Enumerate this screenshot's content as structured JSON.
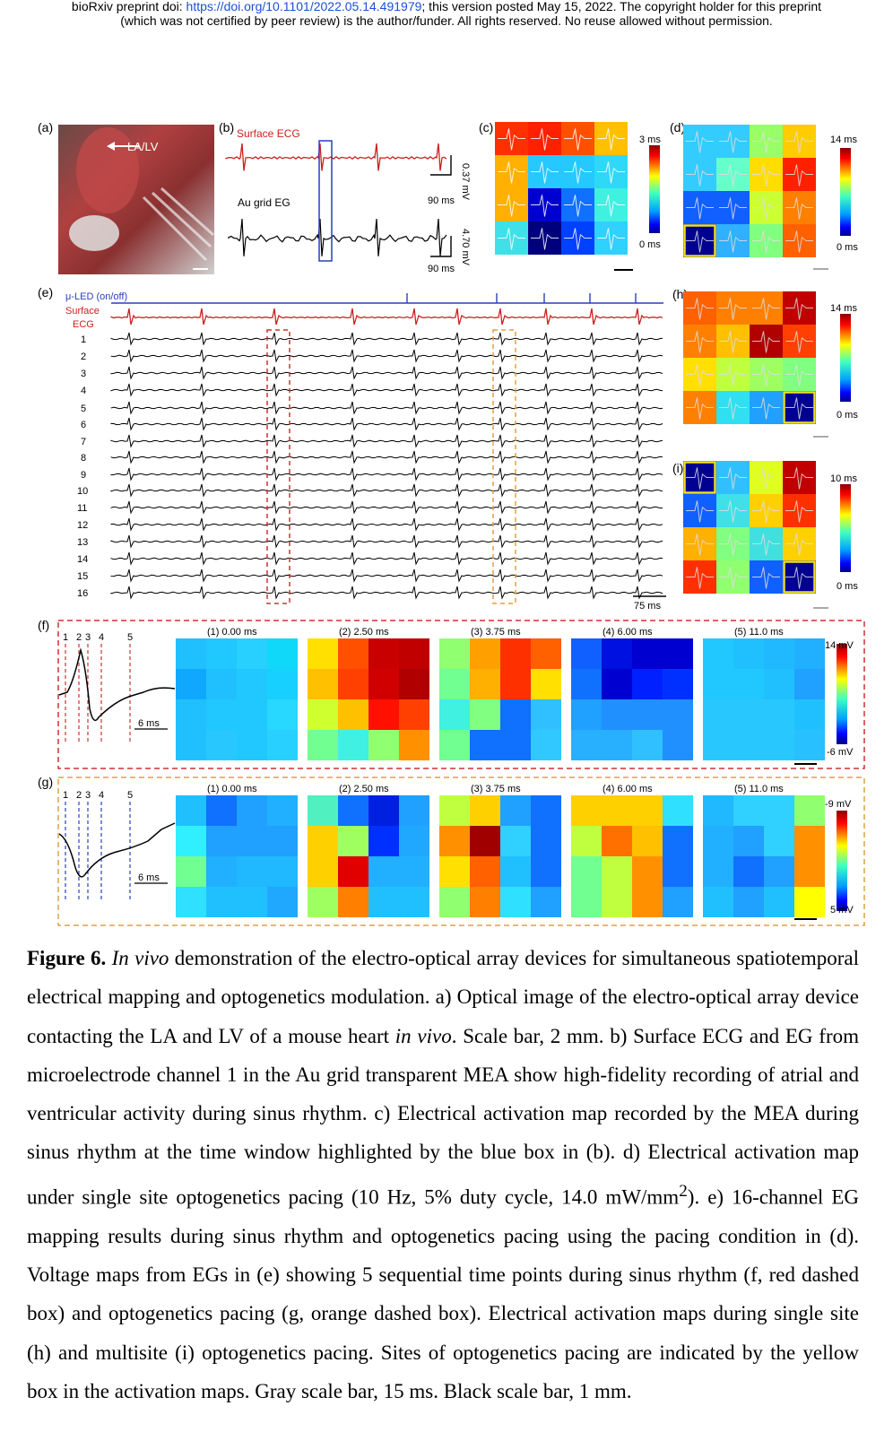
{
  "header": {
    "line1_pre": "bioRxiv preprint doi: ",
    "line1_link": "https://doi.org/10.1101/2022.05.14.491979",
    "line1_post": "; this version posted May 15, 2022. The copyright holder for this preprint",
    "line2": "(which was not certified by peer review) is the author/funder. All rights reserved. No reuse allowed without permission."
  },
  "panels": {
    "a": {
      "label": "(a)",
      "annotation": "LA/LV"
    },
    "b": {
      "label": "(b)",
      "ecg_label": "Surface ECG",
      "eg_label": "Au grid EG",
      "scale_time_1": "90 ms",
      "scale_v_1": "0.37 mV",
      "scale_time_2": "90 ms",
      "scale_v_2": "4.70 mV"
    },
    "c": {
      "label": "(c)",
      "cbar_max": "3 ms",
      "cbar_min": "0 ms",
      "grid": [
        [
          "#ff3000",
          "#ff2000",
          "#ff5000",
          "#ffc000"
        ],
        [
          "#ffb000",
          "#25c8ff",
          "#25c8ff",
          "#30d8f8"
        ],
        [
          "#ffb000",
          "#0000d0",
          "#1070ff",
          "#40f0e0"
        ],
        [
          "#40e0e8",
          "#00007d",
          "#0040ff",
          "#30d0ff"
        ]
      ]
    },
    "d": {
      "label": "(d)",
      "cbar_max": "14 ms",
      "cbar_min": "0 ms",
      "grid": [
        [
          "#33ccff",
          "#33ccff",
          "#99ff66",
          "#ffcc00"
        ],
        [
          "#33ccff",
          "#66ffcc",
          "#ffdd00",
          "#ff2000"
        ],
        [
          "#1060ff",
          "#1060ff",
          "#ccff33",
          "#ff8000"
        ],
        [
          "#000090",
          "#30b0ff",
          "#80ff80",
          "#ff6000"
        ]
      ]
    },
    "e": {
      "label": "(e)",
      "led_label": "μ-LED (on/off)",
      "ecg_label_1": "Surface",
      "ecg_label_2": "ECG",
      "channels": [
        "1",
        "2",
        "3",
        "4",
        "5",
        "6",
        "7",
        "8",
        "9",
        "10",
        "11",
        "12",
        "13",
        "14",
        "15",
        "16"
      ],
      "scale": "75 ms"
    },
    "f": {
      "label": "(f)",
      "markers": [
        "1",
        "2",
        "3",
        "4",
        "5"
      ],
      "scale": "6 ms",
      "maps": [
        {
          "title": "(1) 0.00 ms",
          "grid": [
            [
              "#20c0ff",
              "#20c8ff",
              "#28d0ff",
              "#10d8f8"
            ],
            [
              "#10a8ff",
              "#20c0ff",
              "#20c8ff",
              "#18d0ff"
            ],
            [
              "#20c0ff",
              "#20c8ff",
              "#20c8ff",
              "#28d8ff"
            ],
            [
              "#20c0ff",
              "#28c8ff",
              "#20c8ff",
              "#28d0ff"
            ]
          ]
        },
        {
          "title": "(2) 2.50 ms",
          "grid": [
            [
              "#ffe000",
              "#ff5000",
              "#c80000",
              "#c00000"
            ],
            [
              "#ffc000",
              "#ff4000",
              "#d00000",
              "#b00000"
            ],
            [
              "#d0ff30",
              "#ffc000",
              "#ff1000",
              "#ff4000"
            ],
            [
              "#70ff90",
              "#40f0e0",
              "#90ff70",
              "#ff9000"
            ]
          ]
        },
        {
          "title": "(3) 3.75 ms",
          "grid": [
            [
              "#90ff70",
              "#ffa000",
              "#ff3000",
              "#ff6000"
            ],
            [
              "#70ff90",
              "#ffb000",
              "#ff3000",
              "#ffe000"
            ],
            [
              "#40f0e0",
              "#80ff80",
              "#1070ff",
              "#30c0ff"
            ],
            [
              "#70ff90",
              "#1070ff",
              "#1070ff",
              "#30c8ff"
            ]
          ]
        },
        {
          "title": "(4) 6.00 ms",
          "grid": [
            [
              "#1060ff",
              "#0010e0",
              "#0000d0",
              "#0000d0"
            ],
            [
              "#1070ff",
              "#0000d0",
              "#0020ff",
              "#0030ff"
            ],
            [
              "#20a0ff",
              "#2090ff",
              "#2090ff",
              "#2090ff"
            ],
            [
              "#28b0ff",
              "#28b0ff",
              "#30c0ff",
              "#2090ff"
            ]
          ]
        },
        {
          "title": "(5) 11.0 ms",
          "grid": [
            [
              "#20c8ff",
              "#20c0ff",
              "#20b8ff",
              "#20b0ff"
            ],
            [
              "#20c8ff",
              "#20c8ff",
              "#20c0ff",
              "#20a0ff"
            ],
            [
              "#28c8ff",
              "#28c8ff",
              "#28c8ff",
              "#20c0ff"
            ],
            [
              "#28c8ff",
              "#28c8ff",
              "#28c8ff",
              "#28c0ff"
            ]
          ]
        }
      ],
      "cbar_max": "14 mV",
      "cbar_min": "-6 mV"
    },
    "g": {
      "label": "(g)",
      "markers": [
        "1",
        "2",
        "3",
        "4",
        "5"
      ],
      "scale": "6 ms",
      "maps": [
        {
          "title": "(1) 0.00 ms",
          "grid": [
            [
              "#20c0ff",
              "#1070ff",
              "#20a0ff",
              "#20b0ff"
            ],
            [
              "#30f0ff",
              "#20a0ff",
              "#20a0ff",
              "#20a0ff"
            ],
            [
              "#70ff90",
              "#20b0ff",
              "#20b8ff",
              "#20b8ff"
            ],
            [
              "#30e0ff",
              "#20c0ff",
              "#20c0ff",
              "#20a8ff"
            ]
          ]
        },
        {
          "title": "(2) 2.50 ms",
          "grid": [
            [
              "#50f0c0",
              "#1070ff",
              "#0020e0",
              "#20a0ff"
            ],
            [
              "#ffd000",
              "#a0ff60",
              "#0030ff",
              "#20a8ff"
            ],
            [
              "#ffd000",
              "#e00000",
              "#20b0ff",
              "#20b0ff"
            ],
            [
              "#a0ff60",
              "#ff8000",
              "#20c0ff",
              "#20c0ff"
            ]
          ]
        },
        {
          "title": "(3) 3.75 ms",
          "grid": [
            [
              "#c0ff40",
              "#ffd000",
              "#20a0ff",
              "#1070ff"
            ],
            [
              "#ff9000",
              "#a00000",
              "#30d0ff",
              "#1070ff"
            ],
            [
              "#ffe000",
              "#ff6000",
              "#20c0ff",
              "#1070ff"
            ],
            [
              "#90ff70",
              "#ff8000",
              "#30e0ff",
              "#20a0ff"
            ]
          ]
        },
        {
          "title": "(4) 6.00 ms",
          "grid": [
            [
              "#ffd000",
              "#ffd000",
              "#ffd000",
              "#30e0ff"
            ],
            [
              "#c0ff40",
              "#ff7000",
              "#ffc000",
              "#1070ff"
            ],
            [
              "#70ff90",
              "#c0ff40",
              "#ff9000",
              "#1070ff"
            ],
            [
              "#70ff90",
              "#c0ff40",
              "#ff9000",
              "#20a0ff"
            ]
          ]
        },
        {
          "title": "(5) 11.0 ms",
          "grid": [
            [
              "#20b8ff",
              "#30d0ff",
              "#30d0ff",
              "#90ff70"
            ],
            [
              "#20b0ff",
              "#20a0ff",
              "#30d0ff",
              "#ff9000"
            ],
            [
              "#20b0ff",
              "#1070ff",
              "#20a0ff",
              "#ff9000"
            ],
            [
              "#20c0ff",
              "#20a0ff",
              "#20c0ff",
              "#ffff00"
            ]
          ]
        }
      ],
      "cbar_max": "-9 mV",
      "cbar_min": "5 mV"
    },
    "h": {
      "label": "(h)",
      "cbar_max": "14 ms",
      "cbar_min": "0 ms",
      "grid": [
        [
          "#ff6000",
          "#ff8000",
          "#ff8000",
          "#c00000"
        ],
        [
          "#ff8000",
          "#ffc000",
          "#b00000",
          "#ff4000"
        ],
        [
          "#ffe000",
          "#c0ff40",
          "#a0ff60",
          "#80ff80"
        ],
        [
          "#ff8000",
          "#30e0f0",
          "#20a0ff",
          "#000090"
        ]
      ]
    },
    "i": {
      "label": "(i)",
      "cbar_max": "10 ms",
      "cbar_min": "0 ms",
      "grid": [
        [
          "#000090",
          "#30c0ff",
          "#e0ff20",
          "#c00000"
        ],
        [
          "#1060ff",
          "#40e0e8",
          "#ffd000",
          "#ff3000"
        ],
        [
          "#ffb000",
          "#80ff80",
          "#40e0e0",
          "#ffd000"
        ],
        [
          "#ff3000",
          "#90ff70",
          "#1060ff",
          "#000090"
        ]
      ]
    }
  },
  "caption": {
    "fig_label": "Figure 6.",
    "italic_1": "In vivo",
    "text_1": " demonstration of the electro-optical array devices for simultaneous spatiotemporal electrical mapping and optogenetics modulation. a) Optical image of the electro-optical array device contacting the LA and LV of a mouse heart ",
    "italic_2": "in vivo",
    "text_2": ". Scale bar, 2 mm. b) Surface ECG and EG from microelectrode channel 1 in the Au grid transparent MEA show high-fidelity recording of atrial and ventricular activity during sinus rhythm. c) Electrical activation map recorded by the MEA during sinus rhythm at the time window highlighted by the blue box in (b). d) Electrical activation map under single site optogenetics pacing (10 Hz, 5% duty cycle, 14.0 mW/mm",
    "sup": "2",
    "text_3": "). e) 16-channel EG mapping results during sinus rhythm and optogenetics pacing using the pacing condition in (d). Voltage maps from EGs in (e) showing 5 sequential time points during sinus rhythm (f, red dashed box) and optogenetics pacing (g, orange dashed box). Electrical activation maps during single site (h) and multisite (i) optogenetics pacing. Sites of optogenetics pacing are indicated by the yellow box in the activation maps. Gray scale bar, 15 ms. Black scale bar, 1 mm."
  },
  "colors": {
    "ecg": "#cc2020",
    "led": "#2a3fbf",
    "red_box": "#d03030",
    "orange_box": "#e0a040",
    "highlight": "#f0e020",
    "blue_box": "#2a3fbf"
  }
}
